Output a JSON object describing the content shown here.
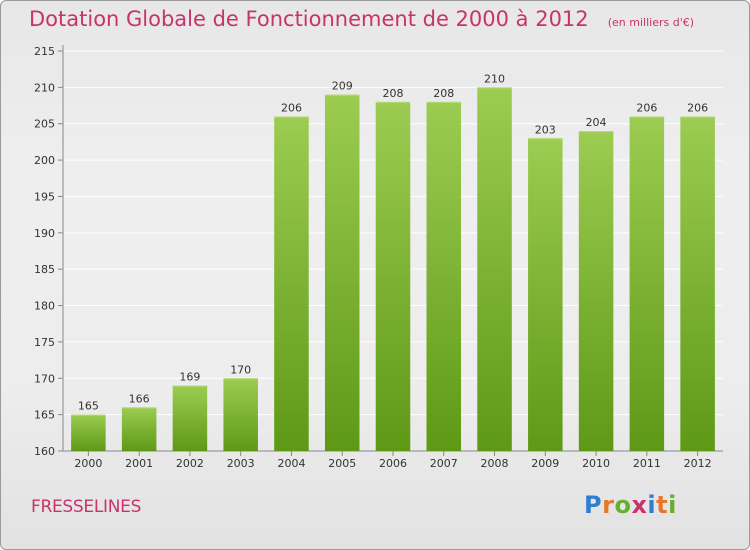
{
  "header": {
    "title": "Dotation Globale de Fonctionnement de 2000 à 2012",
    "subtitle": "(en milliers d'€)"
  },
  "commune": "FRESSELINES",
  "logo": {
    "text": "Proxiti",
    "letter_colors": [
      "#2f7fd0",
      "#e8762b",
      "#66b02f",
      "#c8336b",
      "#2f7fd0",
      "#e8762b",
      "#66b02f"
    ]
  },
  "colors": {
    "bar_top": "#9ccc52",
    "bar_bottom": "#5e9916",
    "grid": "#ffffff",
    "axis": "#888888",
    "text": "#333333"
  },
  "chart_data": {
    "type": "bar",
    "categories": [
      "2000",
      "2001",
      "2002",
      "2003",
      "2004",
      "2005",
      "2006",
      "2007",
      "2008",
      "2009",
      "2010",
      "2011",
      "2012"
    ],
    "values": [
      165,
      166,
      169,
      170,
      206,
      209,
      208,
      208,
      210,
      203,
      204,
      206,
      206
    ],
    "data_labels": [
      "165",
      "166",
      "169",
      "170",
      "206",
      "209",
      "208",
      "208",
      "210",
      "203",
      "204",
      "206",
      "206"
    ],
    "yticks": [
      "160",
      "165",
      "170",
      "175",
      "180",
      "185",
      "190",
      "195",
      "200",
      "205",
      "210",
      "215"
    ],
    "ylim": [
      160,
      215
    ],
    "grid": true
  }
}
